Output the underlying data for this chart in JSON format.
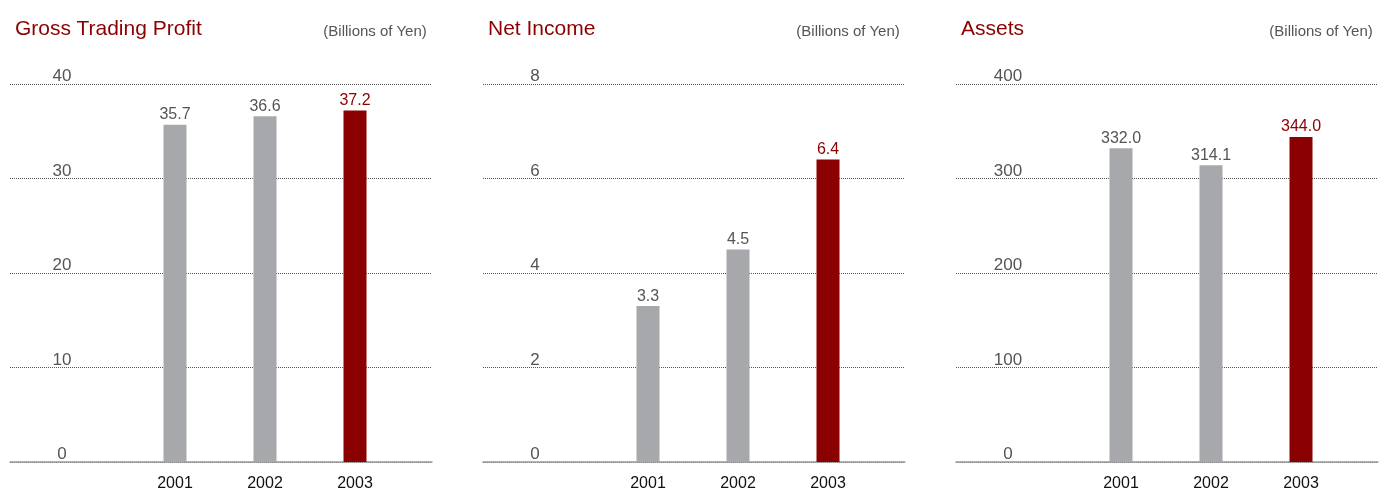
{
  "chart_data": [
    {
      "type": "bar",
      "title": "Gross Trading Profit",
      "subtitle": "(Billions of Yen)",
      "categories": [
        "2001",
        "2002",
        "2003"
      ],
      "values": [
        35.7,
        36.6,
        37.2
      ],
      "value_labels": [
        "35.7",
        "36.6",
        "37.2"
      ],
      "colors": [
        "#a7a8ab",
        "#a7a8ab",
        "#8b0000"
      ],
      "ylim": [
        0,
        40
      ],
      "yticks": [
        0,
        10,
        20,
        30,
        40
      ],
      "grid": "y"
    },
    {
      "type": "bar",
      "title": "Net Income",
      "subtitle": "(Billions of Yen)",
      "categories": [
        "2001",
        "2002",
        "2003"
      ],
      "values": [
        3.3,
        4.5,
        6.4
      ],
      "value_labels": [
        "3.3",
        "4.5",
        "6.4"
      ],
      "colors": [
        "#a7a8ab",
        "#a7a8ab",
        "#8b0000"
      ],
      "ylim": [
        0,
        8
      ],
      "yticks": [
        0,
        2,
        4,
        6,
        8
      ],
      "grid": "y"
    },
    {
      "type": "bar",
      "title": "Assets",
      "subtitle": "(Billions of Yen)",
      "categories": [
        "2001",
        "2002",
        "2003"
      ],
      "values": [
        332.0,
        314.1,
        344.0
      ],
      "value_labels": [
        "332.0",
        "314.1",
        "344.0"
      ],
      "colors": [
        "#a7a8ab",
        "#a7a8ab",
        "#8b0000"
      ],
      "ylim": [
        0,
        400
      ],
      "yticks": [
        0,
        100,
        200,
        300,
        400
      ],
      "grid": "y"
    }
  ]
}
